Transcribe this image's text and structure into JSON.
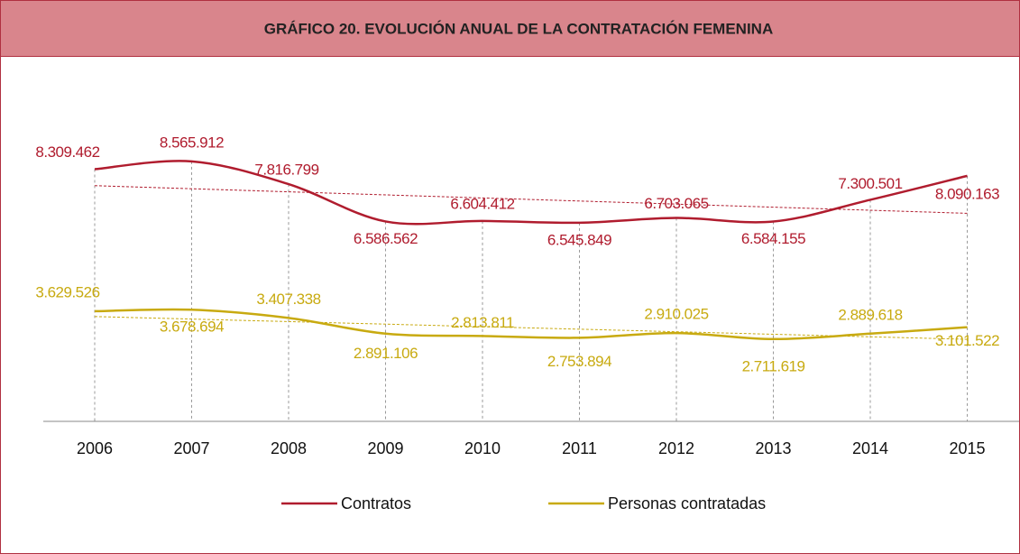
{
  "chart_data": {
    "type": "line",
    "title": "GRÁFICO 20. EVOLUCIÓN ANUAL DE LA CONTRATACIÓN FEMENINA",
    "categories": [
      "2006",
      "2007",
      "2008",
      "2009",
      "2010",
      "2011",
      "2012",
      "2013",
      "2014",
      "2015"
    ],
    "ylim": [
      0,
      11000000
    ],
    "legend": "bottom",
    "series": [
      {
        "name": "Contratos",
        "color": "#b01c2e",
        "values": [
          8309462,
          8565912,
          7816799,
          6586562,
          6604412,
          6545849,
          6703065,
          6584155,
          7300501,
          8090163
        ],
        "value_labels": [
          "8.309.462",
          "8.565.912",
          "7.816.799",
          "6.586.562",
          "6.604.412",
          "6.545.849",
          "6.703.065",
          "6.584.155",
          "7.300.501",
          "8.090.163"
        ]
      },
      {
        "name": "Personas contratadas",
        "color": "#c8aa10",
        "values": [
          3629526,
          3678694,
          3407338,
          2891106,
          2813811,
          2753894,
          2910025,
          2711619,
          2889618,
          3101522
        ],
        "value_labels": [
          "3.629.526",
          "3.678.694",
          "3.407.338",
          "2.891.106",
          "2.813.811",
          "2.753.894",
          "2.910.025",
          "2.711.619",
          "2.889.618",
          "3.101.522"
        ]
      }
    ]
  }
}
